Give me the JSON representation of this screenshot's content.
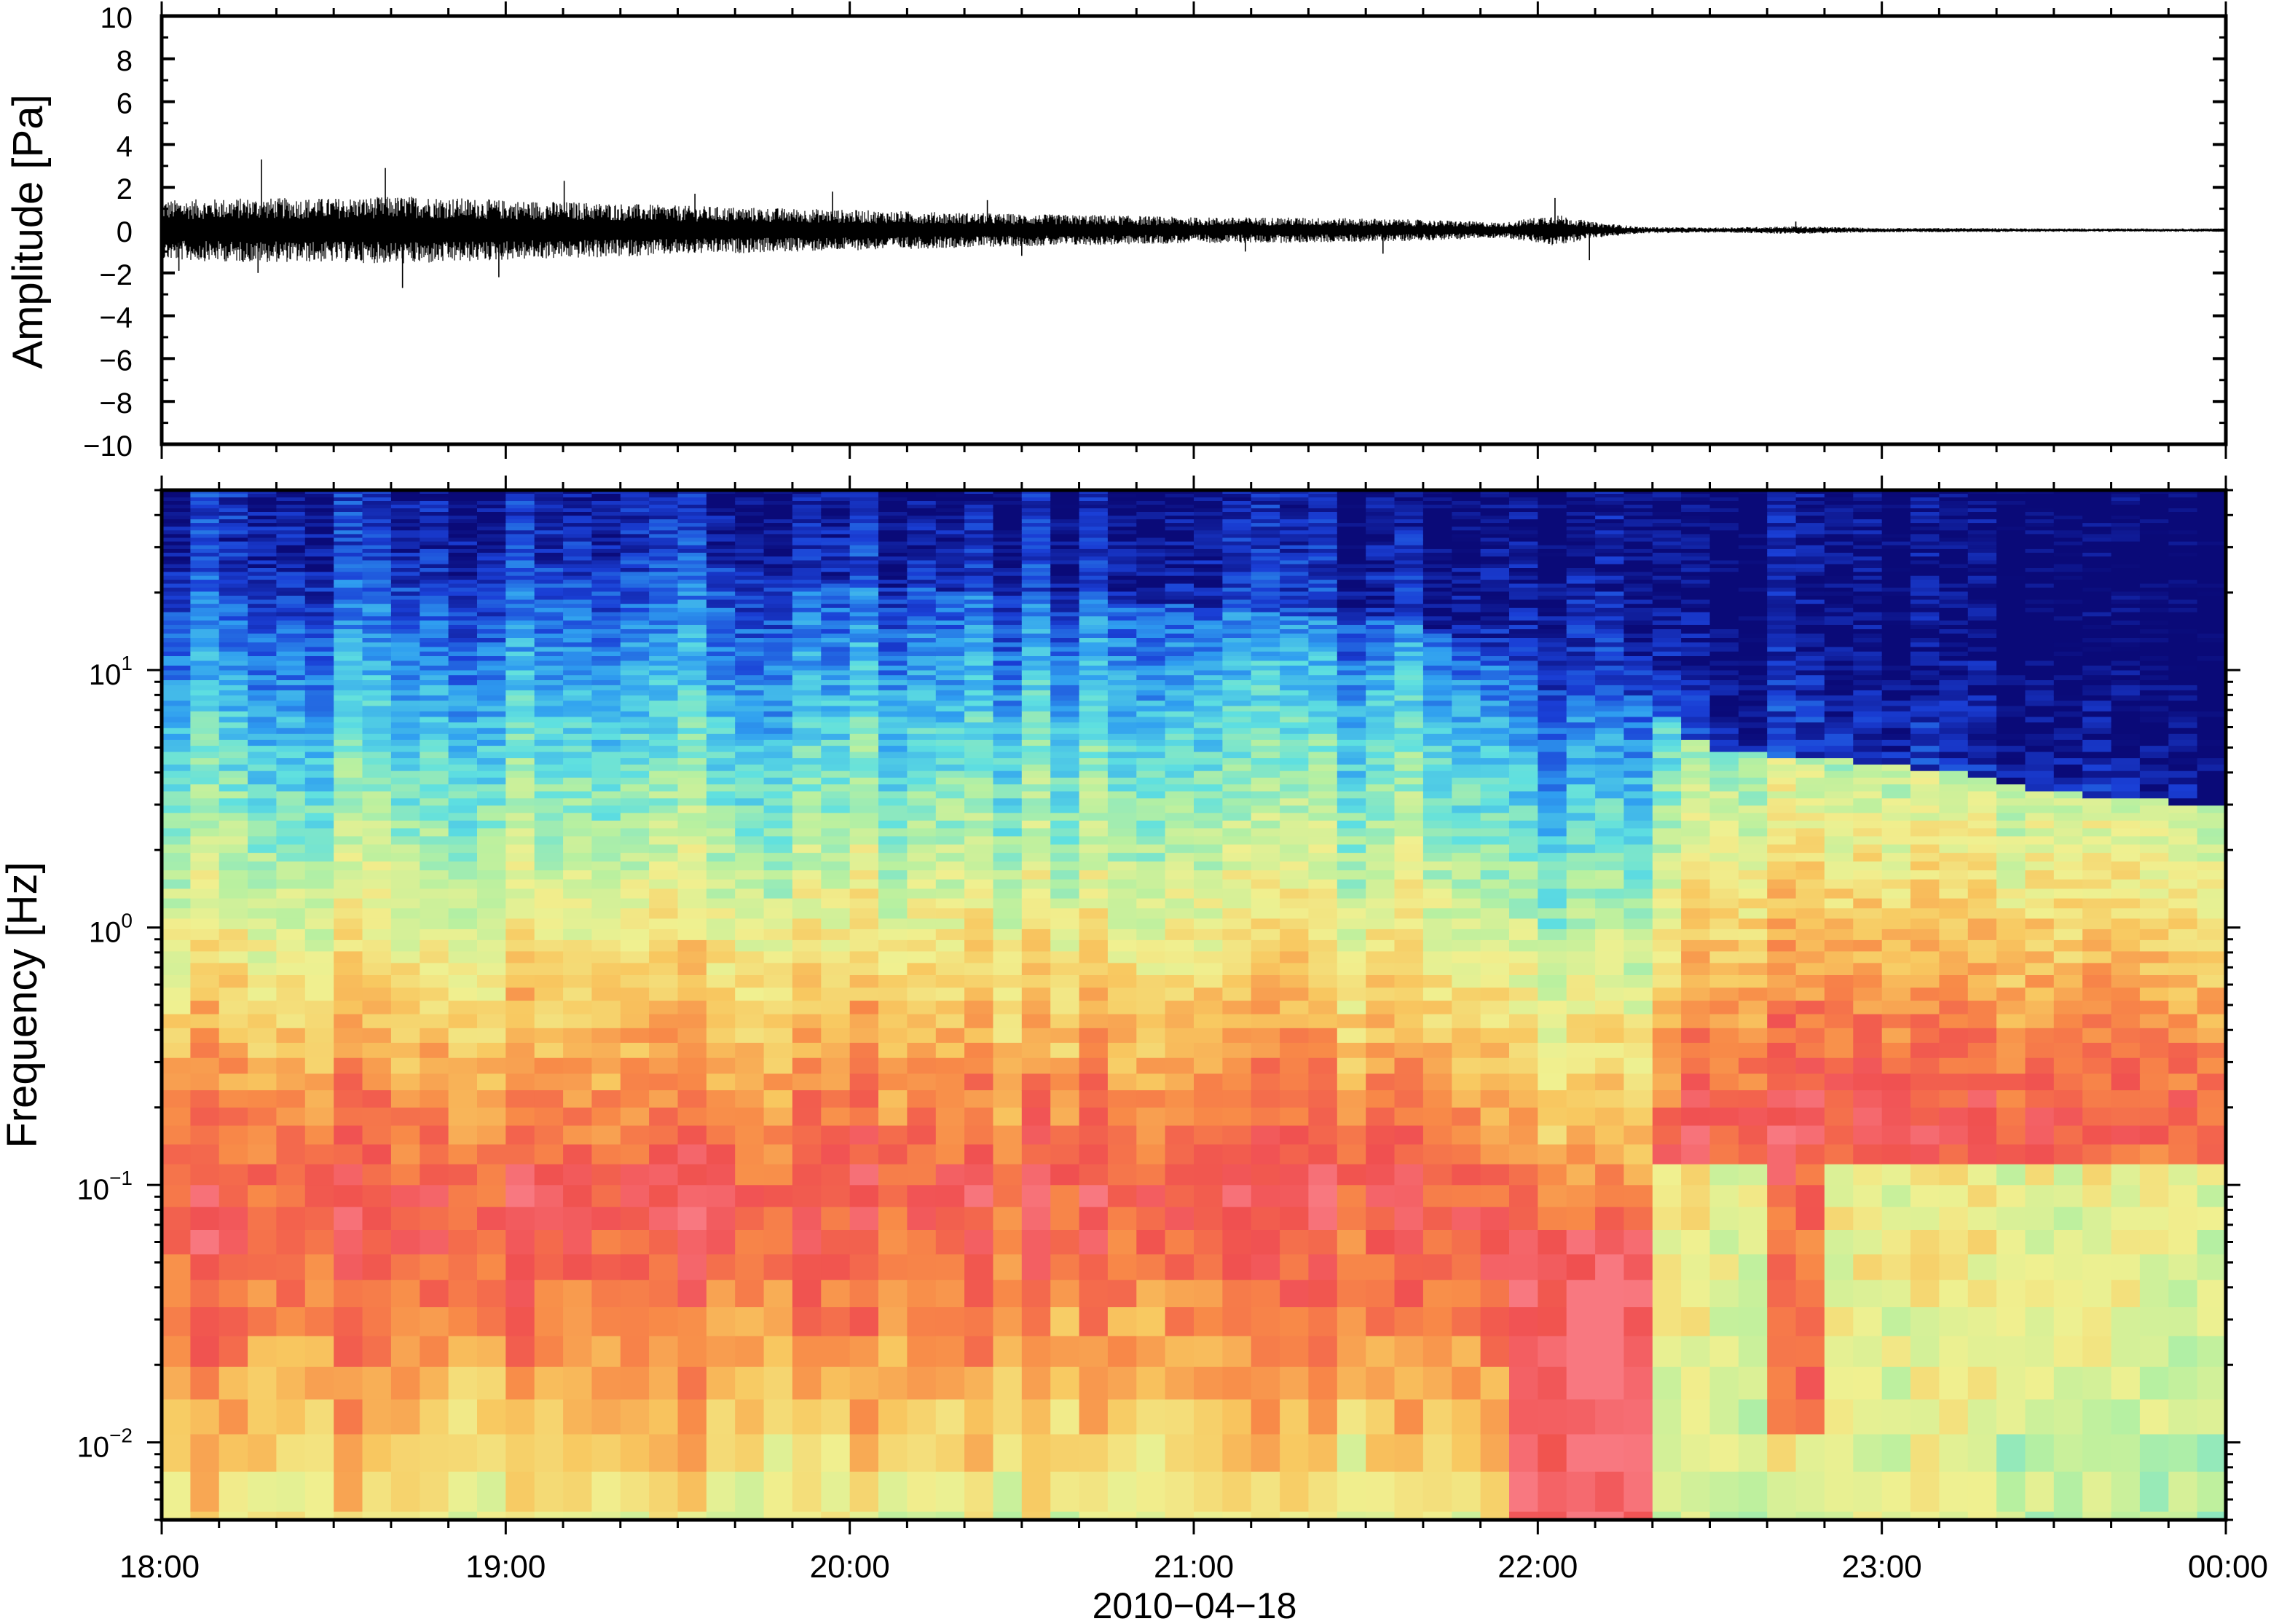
{
  "chart_data": [
    {
      "type": "line",
      "ylabel": "Amplitude [Pa]",
      "ylim": [
        -10,
        10
      ],
      "yticks": [
        {
          "v": 10,
          "label": "10"
        },
        {
          "v": 8,
          "label": "8"
        },
        {
          "v": 6,
          "label": "6"
        },
        {
          "v": 4,
          "label": "4"
        },
        {
          "v": 2,
          "label": "2"
        },
        {
          "v": 0,
          "label": "0"
        },
        {
          "v": -2,
          "label": "−2"
        },
        {
          "v": -4,
          "label": "−4"
        },
        {
          "v": -6,
          "label": "−6"
        },
        {
          "v": -8,
          "label": "−8"
        },
        {
          "v": -10,
          "label": "−10"
        }
      ],
      "xlim": [
        "18:00",
        "00:00"
      ],
      "envelope": {
        "hours": [
          18.0,
          18.25,
          18.5,
          18.75,
          19.0,
          19.25,
          19.5,
          19.75,
          20.0,
          20.25,
          20.5,
          20.75,
          21.0,
          21.25,
          21.5,
          21.75,
          21.9,
          22.05,
          22.15,
          22.3,
          22.5,
          22.75,
          23.0,
          23.25,
          23.5,
          23.75,
          24.0
        ],
        "max_abs_pa": [
          1.4,
          1.5,
          1.5,
          1.6,
          1.4,
          1.3,
          1.15,
          1.05,
          0.95,
          0.85,
          0.75,
          0.7,
          0.6,
          0.6,
          0.55,
          0.45,
          0.35,
          0.75,
          0.4,
          0.15,
          0.12,
          0.18,
          0.1,
          0.1,
          0.08,
          0.08,
          0.08
        ]
      },
      "spikes": [
        {
          "hour": 18.29,
          "pa": 3.3
        },
        {
          "hour": 18.28,
          "pa": -2.0
        },
        {
          "hour": 18.65,
          "pa": 2.9
        },
        {
          "hour": 18.7,
          "pa": -2.7
        },
        {
          "hour": 18.0,
          "pa": 2.4
        },
        {
          "hour": 18.05,
          "pa": -1.9
        },
        {
          "hour": 19.17,
          "pa": 2.3
        },
        {
          "hour": 18.98,
          "pa": -2.2
        },
        {
          "hour": 19.55,
          "pa": 1.7
        },
        {
          "hour": 19.95,
          "pa": 1.8
        },
        {
          "hour": 20.4,
          "pa": 1.4
        },
        {
          "hour": 20.5,
          "pa": -1.2
        },
        {
          "hour": 21.15,
          "pa": -1.0
        },
        {
          "hour": 21.55,
          "pa": -1.1
        },
        {
          "hour": 22.05,
          "pa": 1.5
        },
        {
          "hour": 22.15,
          "pa": -1.4
        },
        {
          "hour": 22.75,
          "pa": 0.4
        }
      ]
    },
    {
      "type": "heatmap",
      "ylabel": "Frequency [Hz]",
      "xlabel": "2010−04−18",
      "yscale": "log",
      "ylim_hz": [
        0.005,
        50
      ],
      "yticks": [
        {
          "v": 10,
          "base": "10",
          "exp": "1"
        },
        {
          "v": 1,
          "base": "10",
          "exp": "0"
        },
        {
          "v": 0.1,
          "base": "10",
          "exp": "−1"
        },
        {
          "v": 0.01,
          "base": "10",
          "exp": "−2"
        }
      ],
      "xticks": [
        "18:00",
        "19:00",
        "20:00",
        "21:00",
        "22:00",
        "23:00",
        "00:00"
      ],
      "xlim_hours": [
        18,
        24
      ],
      "colormap": "jet",
      "colorscale_stops": [
        "#0a0a78",
        "#1a3fd6",
        "#2f9ef0",
        "#5fe0e0",
        "#b8f0a0",
        "#f0f090",
        "#f8c860",
        "#f88a48",
        "#f05050",
        "#f87880"
      ],
      "upper_edge_hz": {
        "hours": [
          18.0,
          19.0,
          20.0,
          21.0,
          21.7,
          22.0,
          22.3,
          22.5,
          23.0,
          23.5,
          24.0
        ],
        "freq_hz": [
          35,
          30,
          22,
          18,
          15,
          10,
          8,
          5,
          4.5,
          3.5,
          3
        ]
      },
      "peak_hz": {
        "hours": [
          18.0,
          19.0,
          20.0,
          21.0,
          21.7,
          22.0,
          22.3,
          22.5,
          23.0,
          24.0
        ],
        "freq_hz": [
          0.08,
          0.09,
          0.1,
          0.1,
          0.1,
          0.04,
          0.04,
          0.2,
          0.2,
          0.2
        ]
      }
    }
  ]
}
